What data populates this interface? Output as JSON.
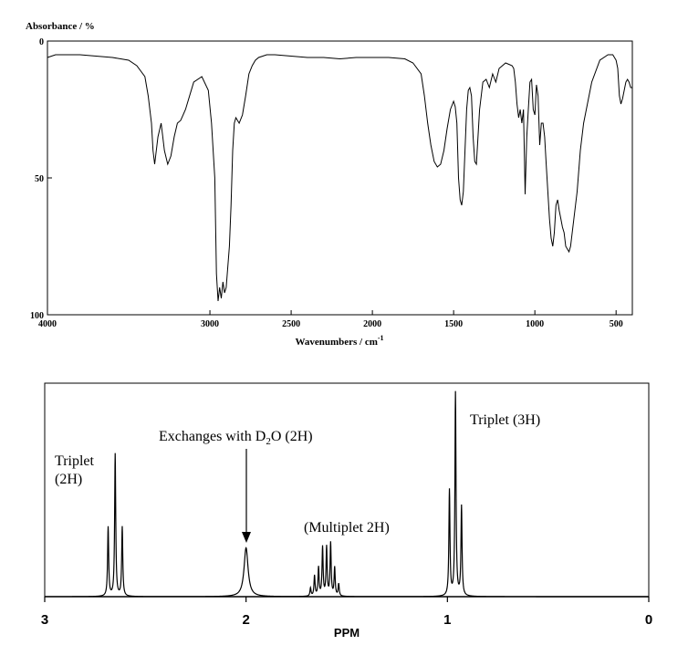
{
  "chart_data": [
    {
      "type": "line",
      "ylabel": "Absorbance / %",
      "xlabel": "Wavenumbers / cm",
      "xlabel_superscript": "-1",
      "xlim": [
        4000,
        400
      ],
      "x_reversed": true,
      "ylim": [
        0,
        100
      ],
      "y_inverted": true,
      "x_ticks": [
        "4000",
        "3000",
        "2500",
        "2000",
        "1500",
        "1000",
        "500"
      ],
      "y_ticks": [
        "0",
        "50",
        "100"
      ],
      "grid": false,
      "series": [
        {
          "x": [
            4000,
            3950,
            3800,
            3700,
            3600,
            3500,
            3450,
            3400,
            3380,
            3360,
            3350,
            3340,
            3320,
            3300,
            3280,
            3260,
            3240,
            3220,
            3200,
            3180,
            3150,
            3100,
            3050,
            3010,
            2990,
            2970,
            2960,
            2950,
            2940,
            2930,
            2920,
            2910,
            2900,
            2880,
            2870,
            2860,
            2850,
            2840,
            2820,
            2800,
            2780,
            2760,
            2740,
            2720,
            2700,
            2650,
            2600,
            2500,
            2400,
            2300,
            2200,
            2100,
            2000,
            1900,
            1800,
            1750,
            1700,
            1680,
            1660,
            1640,
            1620,
            1600,
            1580,
            1560,
            1540,
            1520,
            1500,
            1490,
            1480,
            1470,
            1460,
            1450,
            1440,
            1430,
            1420,
            1410,
            1400,
            1390,
            1380,
            1370,
            1360,
            1340,
            1320,
            1300,
            1280,
            1260,
            1240,
            1220,
            1200,
            1180,
            1160,
            1140,
            1130,
            1120,
            1110,
            1100,
            1090,
            1080,
            1070,
            1060,
            1050,
            1040,
            1030,
            1020,
            1010,
            1000,
            990,
            980,
            970,
            960,
            950,
            940,
            930,
            920,
            910,
            900,
            890,
            880,
            870,
            860,
            850,
            840,
            830,
            820,
            810,
            800,
            790,
            780,
            770,
            760,
            750,
            740,
            720,
            700,
            650,
            600,
            550,
            520,
            500,
            490,
            480,
            470,
            460,
            450,
            440,
            430,
            420,
            410,
            400
          ],
          "y": [
            6,
            5,
            5,
            5.5,
            6,
            7,
            9,
            13,
            20,
            30,
            40,
            45,
            35,
            30,
            40,
            45,
            42,
            35,
            30,
            29,
            25,
            15,
            13,
            18,
            30,
            50,
            85,
            95,
            90,
            94,
            88,
            92,
            90,
            75,
            60,
            40,
            30,
            28,
            30,
            27,
            20,
            12,
            9,
            7,
            6,
            5,
            5,
            5.5,
            6,
            6,
            6.5,
            6,
            6,
            6,
            6.5,
            8,
            12,
            20,
            30,
            38,
            44,
            46,
            45,
            40,
            32,
            25,
            22,
            24,
            30,
            50,
            58,
            60,
            55,
            40,
            25,
            18,
            17,
            20,
            35,
            44,
            45,
            25,
            15,
            14,
            17,
            12,
            15,
            10,
            9,
            8,
            8.5,
            9,
            10,
            15,
            23,
            28,
            25,
            30,
            25,
            56,
            35,
            25,
            15,
            14,
            25,
            27,
            16,
            20,
            38,
            30,
            30,
            35,
            45,
            55,
            65,
            72,
            75,
            70,
            60,
            58,
            62,
            65,
            68,
            70,
            75,
            76,
            77,
            75,
            70,
            65,
            60,
            55,
            40,
            30,
            15,
            7,
            5,
            5,
            7,
            10,
            20,
            23,
            21,
            18,
            15,
            14,
            15,
            17,
            17
          ]
        }
      ]
    },
    {
      "type": "line",
      "xlabel": "PPM",
      "xlim": [
        3,
        0
      ],
      "x_reversed": true,
      "ylim": [
        0,
        1
      ],
      "x_ticks": [
        "3",
        "2",
        "1",
        "0"
      ],
      "grid": false,
      "peaks": [
        {
          "center": 2.65,
          "lines": [
            [
              2.685,
              0.34
            ],
            [
              2.65,
              0.7
            ],
            [
              2.615,
              0.34
            ]
          ]
        },
        {
          "center": 2.0,
          "lines": [
            [
              2.0,
              0.24
            ]
          ]
        },
        {
          "center": 1.6,
          "lines": [
            [
              1.68,
              0.04
            ],
            [
              1.66,
              0.1
            ],
            [
              1.64,
              0.14
            ],
            [
              1.62,
              0.24
            ],
            [
              1.6,
              0.24
            ],
            [
              1.58,
              0.26
            ],
            [
              1.56,
              0.14
            ],
            [
              1.54,
              0.06
            ]
          ]
        },
        {
          "center": 0.96,
          "lines": [
            [
              0.99,
              0.52
            ],
            [
              0.96,
              1.0
            ],
            [
              0.93,
              0.44
            ]
          ]
        }
      ],
      "annotations": [
        {
          "id": "triplet2h",
          "lines": [
            "Triplet",
            "(2H)"
          ]
        },
        {
          "id": "exchange",
          "text": "Exchanges with D",
          "sub": "2",
          "text_after": "O (2H)",
          "arrow_to": 2.0
        },
        {
          "id": "multiplet",
          "text": "(Multiplet 2H)"
        },
        {
          "id": "triplet3h",
          "text": "Triplet (3H)"
        }
      ]
    }
  ]
}
